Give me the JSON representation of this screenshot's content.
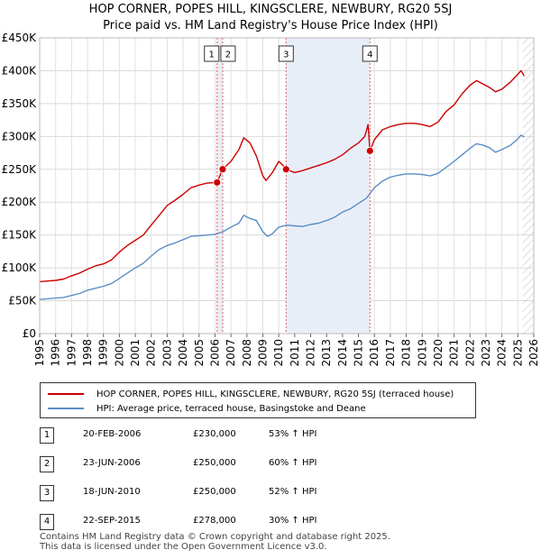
{
  "chart_data": {
    "type": "line",
    "title": "HOP CORNER, POPES HILL, KINGSCLERE, NEWBURY, RG20 5SJ",
    "subtitle": "Price paid vs. HM Land Registry's House Price Index (HPI)",
    "xlim": [
      1995,
      2026
    ],
    "ylim": [
      0,
      450000
    ],
    "x_ticks": [
      "1995",
      "1996",
      "1997",
      "1998",
      "1999",
      "2000",
      "2001",
      "2002",
      "2003",
      "2004",
      "2005",
      "2006",
      "2007",
      "2008",
      "2009",
      "2010",
      "2011",
      "2012",
      "2013",
      "2014",
      "2015",
      "2016",
      "2017",
      "2018",
      "2019",
      "2020",
      "2021",
      "2022",
      "2023",
      "2024",
      "2025",
      "2026"
    ],
    "y_ticks": [
      {
        "value": 0,
        "label": "£0"
      },
      {
        "value": 50000,
        "label": "£50K"
      },
      {
        "value": 100000,
        "label": "£100K"
      },
      {
        "value": 150000,
        "label": "£150K"
      },
      {
        "value": 200000,
        "label": "£200K"
      },
      {
        "value": 250000,
        "label": "£250K"
      },
      {
        "value": 300000,
        "label": "£300K"
      },
      {
        "value": 350000,
        "label": "£350K"
      },
      {
        "value": 400000,
        "label": "£400K"
      },
      {
        "value": 450000,
        "label": "£450K"
      }
    ],
    "grid": true,
    "shaded_ranges": [
      [
        2006.13,
        2006.48
      ],
      [
        2010.46,
        2015.72
      ]
    ],
    "future_hatch_from": 2025.3,
    "series": [
      {
        "name": "HOP CORNER, POPES HILL, KINGSCLERE, NEWBURY, RG20 5SJ (terraced house)",
        "color": "#cc0000",
        "points": [
          [
            1995.0,
            79000
          ],
          [
            1995.5,
            80000
          ],
          [
            1996.0,
            81000
          ],
          [
            1996.5,
            83000
          ],
          [
            1997.0,
            88000
          ],
          [
            1997.5,
            92000
          ],
          [
            1998.0,
            98000
          ],
          [
            1998.5,
            103000
          ],
          [
            1999.0,
            106000
          ],
          [
            1999.5,
            112000
          ],
          [
            2000.0,
            124000
          ],
          [
            2000.5,
            134000
          ],
          [
            2001.0,
            142000
          ],
          [
            2001.5,
            150000
          ],
          [
            2002.0,
            165000
          ],
          [
            2002.5,
            180000
          ],
          [
            2003.0,
            195000
          ],
          [
            2003.5,
            203000
          ],
          [
            2004.0,
            212000
          ],
          [
            2004.5,
            222000
          ],
          [
            2005.0,
            226000
          ],
          [
            2005.5,
            229000
          ],
          [
            2006.0,
            230000
          ],
          [
            2006.13,
            230000
          ],
          [
            2006.48,
            250000
          ],
          [
            2007.0,
            262000
          ],
          [
            2007.5,
            280000
          ],
          [
            2007.8,
            298000
          ],
          [
            2008.2,
            290000
          ],
          [
            2008.6,
            270000
          ],
          [
            2009.0,
            240000
          ],
          [
            2009.2,
            233000
          ],
          [
            2009.6,
            245000
          ],
          [
            2010.0,
            262000
          ],
          [
            2010.3,
            255000
          ],
          [
            2010.46,
            250000
          ],
          [
            2011.0,
            245000
          ],
          [
            2011.5,
            248000
          ],
          [
            2012.0,
            252000
          ],
          [
            2012.5,
            256000
          ],
          [
            2013.0,
            260000
          ],
          [
            2013.5,
            265000
          ],
          [
            2014.0,
            272000
          ],
          [
            2014.5,
            282000
          ],
          [
            2015.0,
            290000
          ],
          [
            2015.4,
            300000
          ],
          [
            2015.6,
            318000
          ],
          [
            2015.72,
            278000
          ],
          [
            2016.0,
            295000
          ],
          [
            2016.5,
            310000
          ],
          [
            2017.0,
            315000
          ],
          [
            2017.5,
            318000
          ],
          [
            2018.0,
            320000
          ],
          [
            2018.5,
            320000
          ],
          [
            2019.0,
            318000
          ],
          [
            2019.5,
            315000
          ],
          [
            2020.0,
            322000
          ],
          [
            2020.5,
            338000
          ],
          [
            2021.0,
            348000
          ],
          [
            2021.5,
            365000
          ],
          [
            2022.0,
            378000
          ],
          [
            2022.4,
            385000
          ],
          [
            2022.8,
            380000
          ],
          [
            2023.2,
            375000
          ],
          [
            2023.6,
            368000
          ],
          [
            2024.0,
            372000
          ],
          [
            2024.5,
            382000
          ],
          [
            2024.9,
            392000
          ],
          [
            2025.2,
            400000
          ],
          [
            2025.4,
            392000
          ]
        ]
      },
      {
        "name": "HPI: Average price, terraced house, Basingstoke and Deane",
        "color": "#5b8ec6",
        "points": [
          [
            1995.0,
            52000
          ],
          [
            1995.5,
            53000
          ],
          [
            1996.0,
            54000
          ],
          [
            1996.5,
            55000
          ],
          [
            1997.0,
            58000
          ],
          [
            1997.5,
            61000
          ],
          [
            1998.0,
            66000
          ],
          [
            1998.5,
            69000
          ],
          [
            1999.0,
            72000
          ],
          [
            1999.5,
            76000
          ],
          [
            2000.0,
            84000
          ],
          [
            2000.5,
            92000
          ],
          [
            2001.0,
            100000
          ],
          [
            2001.5,
            107000
          ],
          [
            2002.0,
            118000
          ],
          [
            2002.5,
            128000
          ],
          [
            2003.0,
            134000
          ],
          [
            2003.5,
            138000
          ],
          [
            2004.0,
            143000
          ],
          [
            2004.5,
            148000
          ],
          [
            2005.0,
            149000
          ],
          [
            2005.5,
            150000
          ],
          [
            2006.0,
            151000
          ],
          [
            2006.5,
            155000
          ],
          [
            2007.0,
            162000
          ],
          [
            2007.5,
            168000
          ],
          [
            2007.8,
            180000
          ],
          [
            2008.2,
            175000
          ],
          [
            2008.6,
            172000
          ],
          [
            2009.0,
            155000
          ],
          [
            2009.3,
            148000
          ],
          [
            2009.6,
            152000
          ],
          [
            2010.0,
            162000
          ],
          [
            2010.5,
            165000
          ],
          [
            2011.0,
            164000
          ],
          [
            2011.5,
            163000
          ],
          [
            2012.0,
            166000
          ],
          [
            2012.5,
            168000
          ],
          [
            2013.0,
            172000
          ],
          [
            2013.5,
            177000
          ],
          [
            2014.0,
            185000
          ],
          [
            2014.5,
            190000
          ],
          [
            2015.0,
            198000
          ],
          [
            2015.5,
            206000
          ],
          [
            2016.0,
            222000
          ],
          [
            2016.5,
            232000
          ],
          [
            2017.0,
            238000
          ],
          [
            2017.5,
            241000
          ],
          [
            2018.0,
            243000
          ],
          [
            2018.5,
            243000
          ],
          [
            2019.0,
            242000
          ],
          [
            2019.5,
            240000
          ],
          [
            2020.0,
            244000
          ],
          [
            2020.5,
            253000
          ],
          [
            2021.0,
            262000
          ],
          [
            2021.5,
            272000
          ],
          [
            2022.0,
            282000
          ],
          [
            2022.4,
            289000
          ],
          [
            2022.8,
            287000
          ],
          [
            2023.2,
            283000
          ],
          [
            2023.6,
            276000
          ],
          [
            2024.0,
            280000
          ],
          [
            2024.5,
            286000
          ],
          [
            2024.9,
            294000
          ],
          [
            2025.2,
            302000
          ],
          [
            2025.4,
            299000
          ]
        ]
      }
    ],
    "sales": [
      {
        "num": "1",
        "date": "20-FEB-2006",
        "x": 2006.13,
        "price": 230000,
        "price_label": "£230,000",
        "hpi": "53% ↑ HPI"
      },
      {
        "num": "2",
        "date": "23-JUN-2006",
        "x": 2006.48,
        "price": 250000,
        "price_label": "£250,000",
        "hpi": "60% ↑ HPI"
      },
      {
        "num": "3",
        "date": "18-JUN-2010",
        "x": 2010.46,
        "price": 250000,
        "price_label": "£250,000",
        "hpi": "52% ↑ HPI"
      },
      {
        "num": "4",
        "date": "22-SEP-2015",
        "x": 2015.72,
        "price": 278000,
        "price_label": "£278,000",
        "hpi": "30% ↑ HPI"
      }
    ]
  },
  "legend": {
    "property_label": "HOP CORNER, POPES HILL, KINGSCLERE, NEWBURY, RG20 5SJ (terraced house)",
    "hpi_label": "HPI: Average price, terraced house, Basingstoke and Deane",
    "property_color": "#cc0000",
    "hpi_color": "#5b8ec6"
  },
  "footer": {
    "line1": "Contains HM Land Registry data © Crown copyright and database right 2025.",
    "line2": "This data is licensed under the Open Government Licence v3.0."
  }
}
